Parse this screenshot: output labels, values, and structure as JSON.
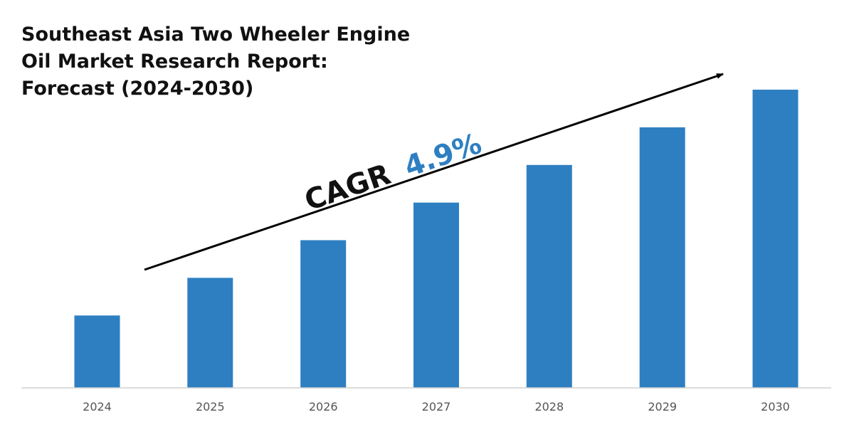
{
  "chart_data": {
    "type": "bar",
    "title": "Southeast Asia Two Wheeler Engine Oil Market Research Report: Forecast (2024-2030)",
    "title_lines": [
      "Southeast Asia Two Wheeler Engine",
      "Oil Market Research Report:",
      "Forecast (2024-2030)"
    ],
    "categories": [
      "2024",
      "2025",
      "2026",
      "2027",
      "2028",
      "2029",
      "2030"
    ],
    "values": [
      100,
      152,
      204,
      256,
      308,
      360,
      412
    ],
    "value_note": "relative heights, no y-axis values shown",
    "ylim": [
      0,
      412
    ],
    "xlabel": "",
    "ylabel": "",
    "grid": false,
    "bar_color": "#2e7fc2",
    "annotation": {
      "label": "CAGR",
      "value": "4.9%",
      "label_color": "#111111",
      "value_color": "#2e7fc2",
      "arrow": "trend-arrow"
    }
  }
}
